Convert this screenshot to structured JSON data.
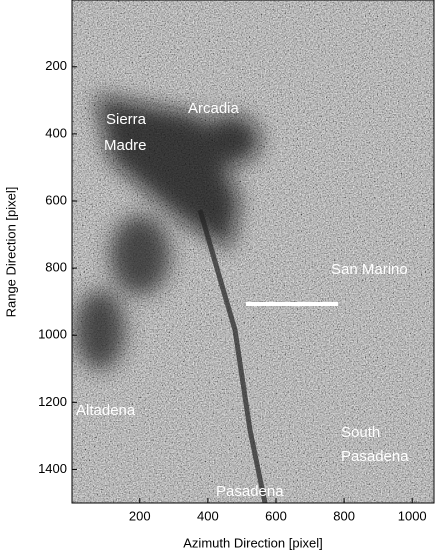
{
  "chart_data": {
    "type": "image",
    "x_label": "Azimuth Direction [pixel]",
    "y_label": "Range Direction [pixel]",
    "xlim": [
      1,
      1064
    ],
    "ylim": [
      1,
      1500
    ],
    "xticks": [
      200,
      400,
      600,
      800,
      1000
    ],
    "yticks": [
      200,
      400,
      600,
      800,
      1000,
      1200,
      1400
    ],
    "annotations": [
      "Sierra",
      "Madre",
      "Arcadia",
      "San Marino",
      "Altadena",
      "South",
      "Pasadena",
      "Pasadena"
    ]
  }
}
